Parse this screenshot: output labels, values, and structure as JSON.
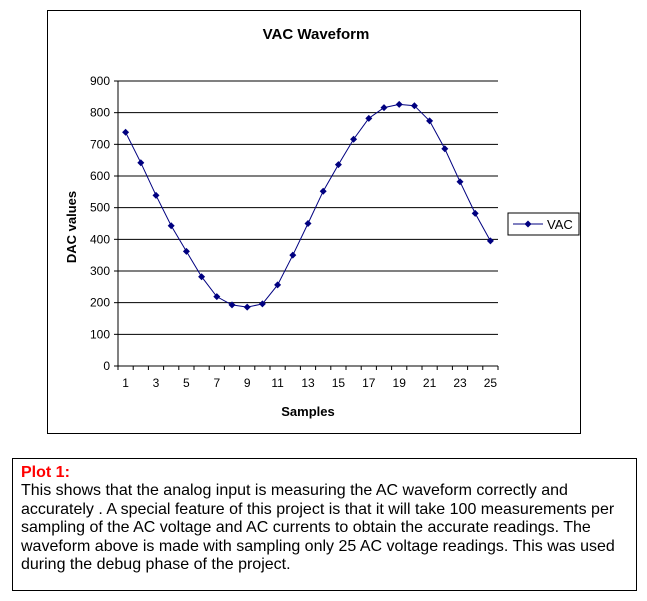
{
  "chart_data": {
    "type": "line",
    "title": "VAC Waveform",
    "xlabel": "Samples",
    "ylabel": "DAC values",
    "x": [
      1,
      2,
      3,
      4,
      5,
      6,
      7,
      8,
      9,
      10,
      11,
      12,
      13,
      14,
      15,
      16,
      17,
      18,
      19,
      20,
      21,
      22,
      23,
      24,
      25
    ],
    "x_tick_labels": [
      "1",
      "3",
      "5",
      "7",
      "9",
      "11",
      "13",
      "15",
      "17",
      "19",
      "21",
      "23",
      "25"
    ],
    "y_ticks": [
      0,
      100,
      200,
      300,
      400,
      500,
      600,
      700,
      800,
      900
    ],
    "ylim": [
      0,
      900
    ],
    "grid": "horizontal",
    "legend_position": "right",
    "series": [
      {
        "name": "VAC",
        "color": "#000080",
        "marker": "diamond",
        "values": [
          738,
          642,
          539,
          443,
          362,
          282,
          219,
          193,
          186,
          196,
          256,
          350,
          450,
          552,
          636,
          716,
          782,
          816,
          826,
          822,
          774,
          686,
          582,
          482,
          395
        ]
      }
    ]
  },
  "caption": {
    "title": "Plot 1:",
    "body": "This shows that the analog input is measuring the AC waveform correctly and accurately . A special feature of this project is that it will take 100 measurements per sampling of the AC voltage and AC currents to obtain the accurate readings. The waveform above is made with sampling only 25 AC voltage readings. This was used during the debug phase of the project."
  }
}
